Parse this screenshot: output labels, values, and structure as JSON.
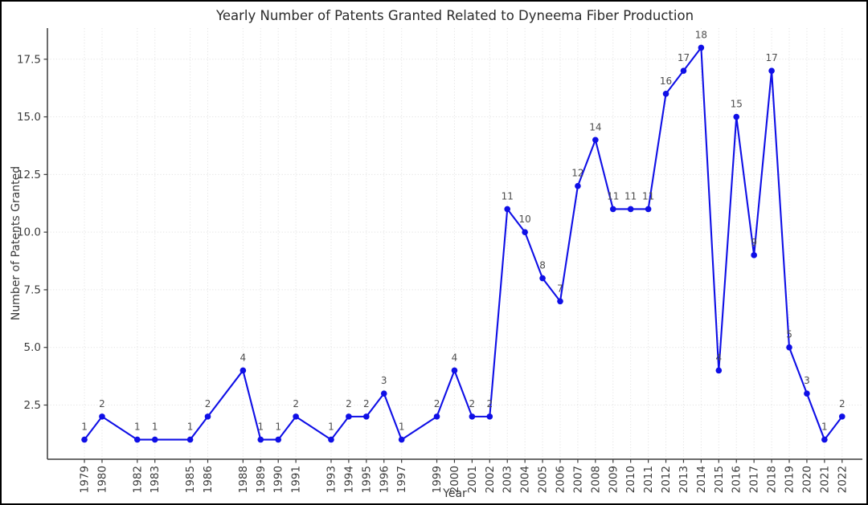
{
  "chart_data": {
    "type": "line",
    "title": "Yearly Number of Patents Granted Related to Dyneema Fiber Production",
    "xlabel": "Year",
    "ylabel": "Number of Patents Granted",
    "series": [
      {
        "name": "Patents Granted",
        "x": [
          1979,
          1980,
          1982,
          1983,
          1985,
          1986,
          1988,
          1989,
          1990,
          1991,
          1993,
          1994,
          1995,
          1996,
          1997,
          1999,
          2000,
          2001,
          2002,
          2003,
          2004,
          2005,
          2006,
          2007,
          2008,
          2009,
          2010,
          2011,
          2012,
          2013,
          2014,
          2015,
          2016,
          2017,
          2018,
          2019,
          2020,
          2021,
          2022
        ],
        "values": [
          1,
          2,
          1,
          1,
          1,
          2,
          4,
          1,
          1,
          2,
          1,
          2,
          2,
          3,
          1,
          2,
          4,
          2,
          2,
          11,
          10,
          8,
          7,
          12,
          14,
          11,
          11,
          11,
          16,
          17,
          18,
          4,
          15,
          9,
          17,
          5,
          3,
          1,
          2
        ]
      }
    ],
    "point_labels_visible": true,
    "y_tick_labels": [
      "2.5",
      "5.0",
      "7.5",
      "10.0",
      "12.5",
      "15.0",
      "17.5"
    ],
    "xlim": [
      1976.9,
      2023.15
    ],
    "ylim": [
      0.15,
      18.85
    ],
    "grid": "dotted",
    "legend": "none",
    "marker": "circle",
    "colors": {
      "line": "#0F0FE6",
      "grid": "#e3e3e3",
      "spine": "#3c3c3c",
      "tick_text": "#3b3b3b",
      "annotation_text": "#4d4d4d",
      "title_text": "#2b2b2b",
      "background": "#ffffff",
      "frame": "#000000"
    }
  }
}
